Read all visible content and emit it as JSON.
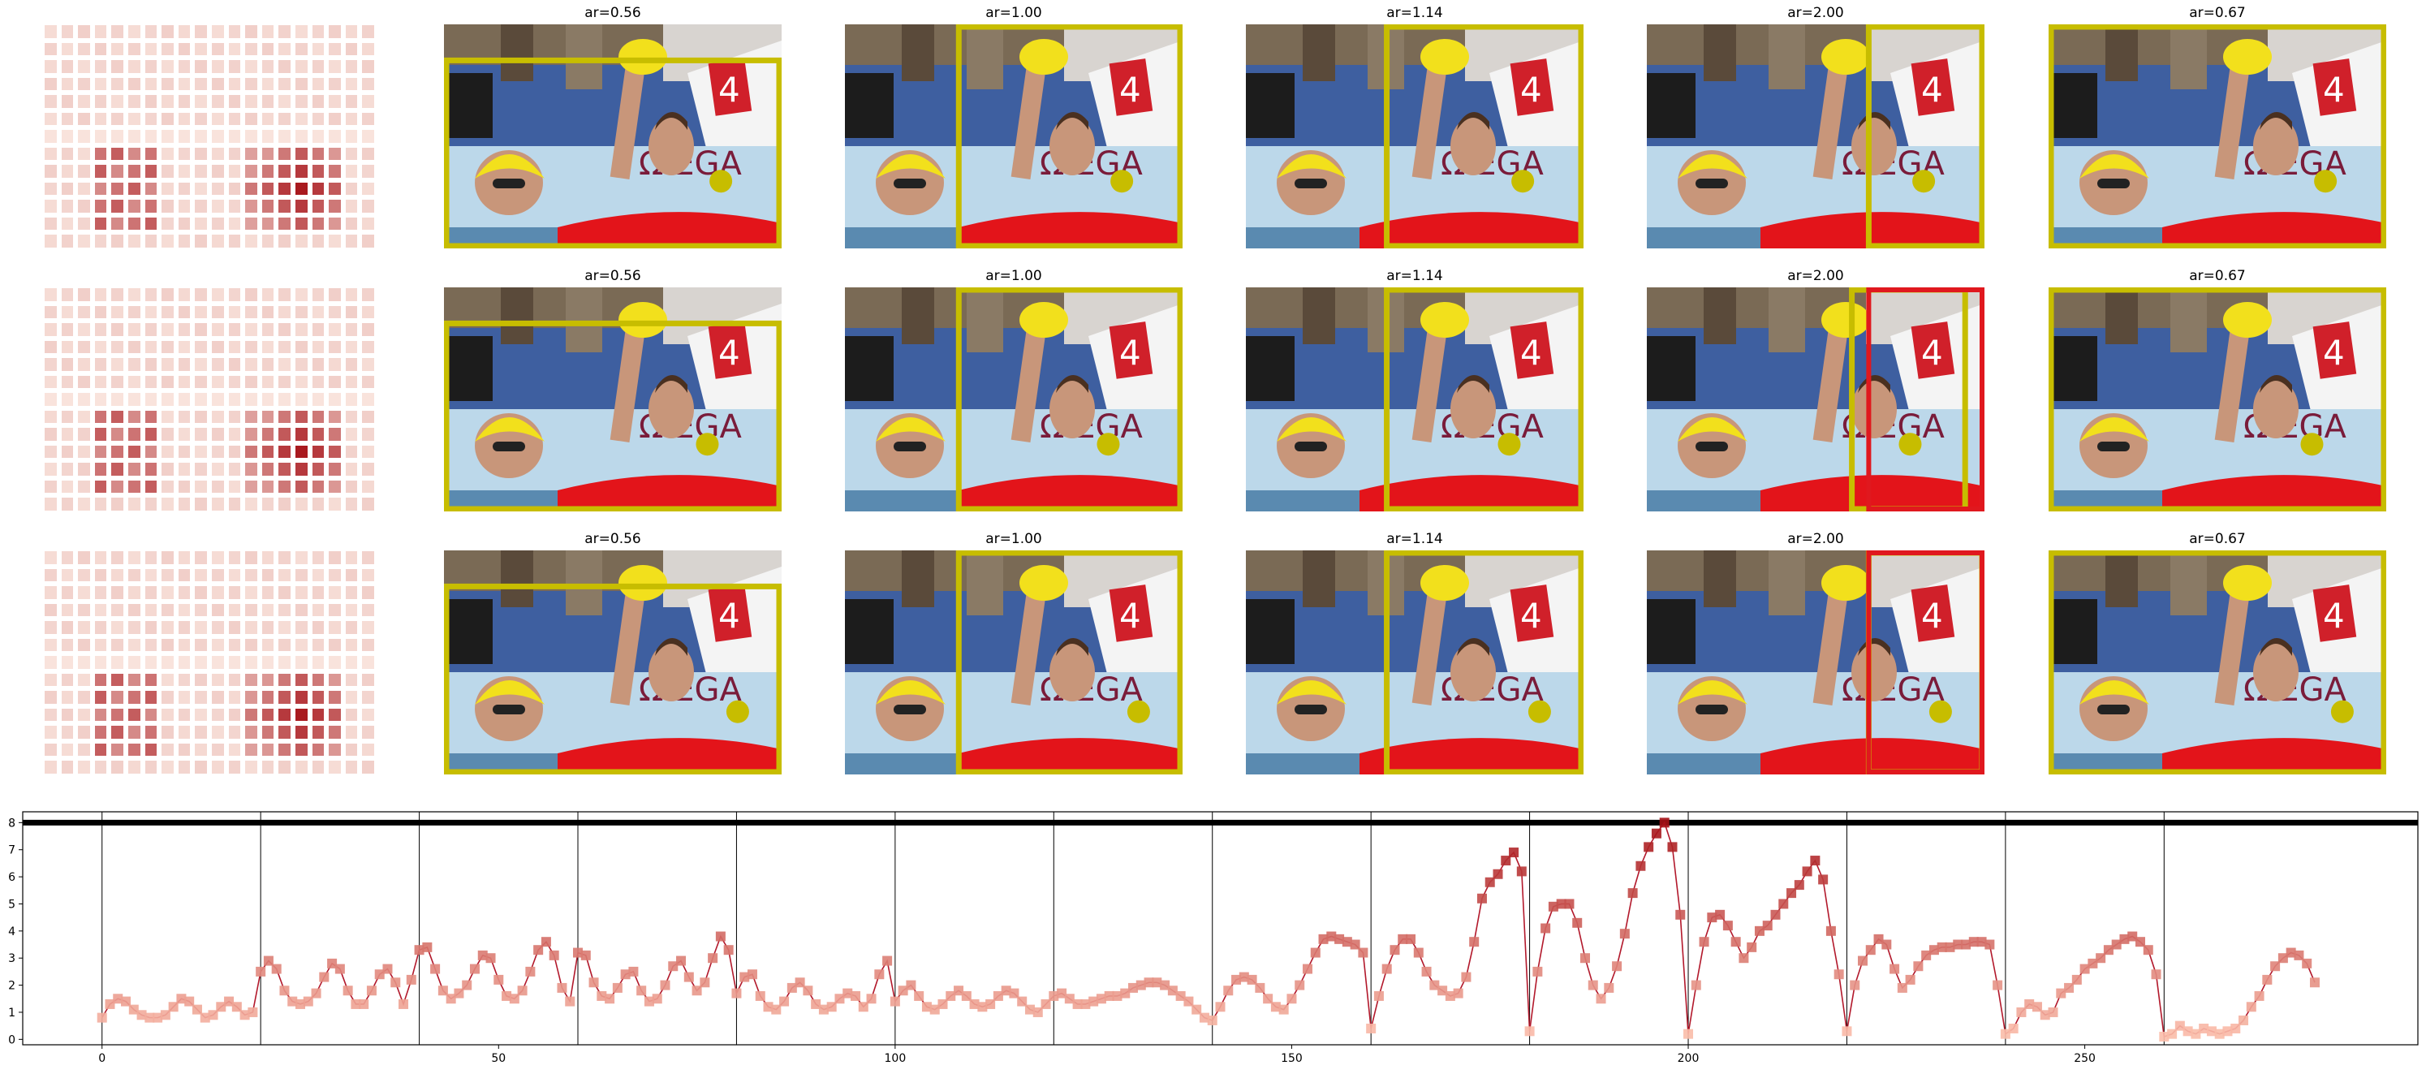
{
  "colors": {
    "box": "#c7bd00",
    "accent_red": "#e0181e",
    "heat_low": "#fde0d2",
    "heat_high": "#a50f15",
    "pool": "#3e5fa0",
    "water": "#bcd8ea",
    "skin": "#c8967a",
    "cap": "#f2e01c"
  },
  "rows": [
    {
      "panels": [
        {
          "title": "ar=0.56",
          "box": [
            0,
            0.15,
            1,
            1
          ],
          "dot": [
            0.82,
            0.7
          ]
        },
        {
          "title": "ar=1.00",
          "box": [
            0.33,
            0,
            1,
            1
          ],
          "dot": [
            0.82,
            0.7
          ]
        },
        {
          "title": "ar=1.14",
          "box": [
            0.41,
            0,
            1,
            1
          ],
          "dot": [
            0.82,
            0.7
          ]
        },
        {
          "title": "ar=2.00",
          "box": [
            0.65,
            0,
            1,
            1
          ],
          "dot": [
            0.82,
            0.7
          ]
        },
        {
          "title": "ar=0.67",
          "box": [
            0,
            0,
            1,
            1
          ],
          "dot": [
            0.82,
            0.7
          ]
        }
      ]
    },
    {
      "panels": [
        {
          "title": "ar=0.56",
          "box": [
            0,
            0.15,
            1,
            1
          ],
          "dot": [
            0.78,
            0.7
          ]
        },
        {
          "title": "ar=1.00",
          "box": [
            0.33,
            0,
            1,
            1
          ],
          "dot": [
            0.78,
            0.7
          ]
        },
        {
          "title": "ar=1.14",
          "box": [
            0.41,
            0,
            1,
            1
          ],
          "dot": [
            0.78,
            0.7
          ]
        },
        {
          "title": "ar=2.00",
          "box": [
            0.6,
            0,
            0.95,
            1
          ],
          "dot": [
            0.78,
            0.7
          ],
          "redbox": [
            0.65,
            0,
            1,
            1
          ]
        },
        {
          "title": "ar=0.67",
          "box": [
            0,
            0,
            1,
            1
          ],
          "dot": [
            0.78,
            0.7
          ]
        }
      ]
    },
    {
      "panels": [
        {
          "title": "ar=0.56",
          "box": [
            0,
            0.15,
            1,
            1
          ],
          "dot": [
            0.87,
            0.72
          ]
        },
        {
          "title": "ar=1.00",
          "box": [
            0.33,
            0,
            1,
            1
          ],
          "dot": [
            0.87,
            0.72
          ]
        },
        {
          "title": "ar=1.14",
          "box": [
            0.41,
            0,
            1,
            1
          ],
          "dot": [
            0.87,
            0.72
          ]
        },
        {
          "title": "ar=2.00",
          "box": [
            0.65,
            0,
            1,
            1
          ],
          "dot": [
            0.87,
            0.72
          ],
          "redbox": [
            0.65,
            0,
            1,
            1
          ]
        },
        {
          "title": "ar=0.67",
          "box": [
            0,
            0,
            1,
            1
          ],
          "dot": [
            0.87,
            0.72
          ]
        }
      ]
    }
  ],
  "chart_data": {
    "type": "line",
    "xlim": [
      -10,
      292
    ],
    "ylim": [
      -0.2,
      8.4
    ],
    "xticks": [
      0,
      50,
      100,
      150,
      200,
      250
    ],
    "yticks": [
      0,
      1,
      2,
      3,
      4,
      5,
      6,
      7,
      8
    ],
    "vlines": [
      0,
      20,
      40,
      60,
      80,
      100,
      120,
      140,
      160,
      180,
      200,
      220,
      240,
      260
    ],
    "hline": 8,
    "grid": false,
    "y": [
      0.8,
      1.3,
      1.5,
      1.4,
      1.1,
      0.9,
      0.8,
      0.8,
      0.9,
      1.2,
      1.5,
      1.4,
      1.1,
      0.8,
      0.9,
      1.2,
      1.4,
      1.2,
      0.9,
      1.0,
      2.5,
      2.9,
      2.6,
      1.8,
      1.4,
      1.3,
      1.4,
      1.7,
      2.3,
      2.8,
      2.6,
      1.8,
      1.3,
      1.3,
      1.8,
      2.4,
      2.6,
      2.1,
      1.3,
      2.2,
      3.3,
      3.4,
      2.6,
      1.8,
      1.5,
      1.7,
      2.0,
      2.6,
      3.1,
      3.0,
      2.2,
      1.6,
      1.5,
      1.8,
      2.5,
      3.3,
      3.6,
      3.1,
      1.9,
      1.4,
      3.2,
      3.1,
      2.1,
      1.6,
      1.5,
      1.9,
      2.4,
      2.5,
      1.8,
      1.4,
      1.5,
      2.0,
      2.7,
      2.9,
      2.3,
      1.8,
      2.1,
      3.0,
      3.8,
      3.3,
      1.7,
      2.3,
      2.4,
      1.6,
      1.2,
      1.1,
      1.4,
      1.9,
      2.1,
      1.8,
      1.3,
      1.1,
      1.2,
      1.5,
      1.7,
      1.6,
      1.2,
      1.5,
      2.4,
      2.9,
      1.4,
      1.8,
      2.0,
      1.6,
      1.2,
      1.1,
      1.3,
      1.6,
      1.8,
      1.6,
      1.3,
      1.2,
      1.3,
      1.6,
      1.8,
      1.7,
      1.4,
      1.1,
      1.0,
      1.3,
      1.6,
      1.7,
      1.5,
      1.3,
      1.3,
      1.4,
      1.5,
      1.6,
      1.6,
      1.7,
      1.9,
      2.0,
      2.1,
      2.1,
      2.0,
      1.8,
      1.6,
      1.4,
      1.1,
      0.8,
      0.7,
      1.2,
      1.8,
      2.2,
      2.3,
      2.2,
      1.9,
      1.5,
      1.2,
      1.1,
      1.5,
      2.0,
      2.6,
      3.2,
      3.7,
      3.8,
      3.7,
      3.6,
      3.5,
      3.2,
      0.4,
      1.6,
      2.6,
      3.3,
      3.7,
      3.7,
      3.2,
      2.5,
      2.0,
      1.8,
      1.6,
      1.7,
      2.3,
      3.6,
      5.2,
      5.8,
      6.1,
      6.6,
      6.9,
      6.2,
      0.3,
      2.5,
      4.1,
      4.9,
      5.0,
      5.0,
      4.3,
      3.0,
      2.0,
      1.5,
      1.9,
      2.7,
      3.9,
      5.4,
      6.4,
      7.1,
      7.6,
      8.0,
      7.1,
      4.6,
      0.2,
      2.0,
      3.6,
      4.5,
      4.6,
      4.2,
      3.6,
      3.0,
      3.4,
      4.0,
      4.2,
      4.6,
      5.0,
      5.4,
      5.7,
      6.2,
      6.6,
      5.9,
      4.0,
      2.4,
      0.3,
      2.0,
      2.9,
      3.3,
      3.7,
      3.5,
      2.6,
      1.9,
      2.2,
      2.7,
      3.1,
      3.3,
      3.4,
      3.4,
      3.5,
      3.5,
      3.6,
      3.6,
      3.5,
      2.0,
      0.2,
      0.4,
      1.0,
      1.3,
      1.2,
      0.9,
      1.0,
      1.7,
      1.9,
      2.2,
      2.6,
      2.8,
      3.0,
      3.3,
      3.5,
      3.7,
      3.8,
      3.6,
      3.3,
      2.4,
      0.1,
      0.2,
      0.5,
      0.3,
      0.2,
      0.4,
      0.3,
      0.2,
      0.3,
      0.4,
      0.7,
      1.2,
      1.6,
      2.2,
      2.7,
      3.0,
      3.2,
      3.1,
      2.8,
      2.1
    ]
  }
}
